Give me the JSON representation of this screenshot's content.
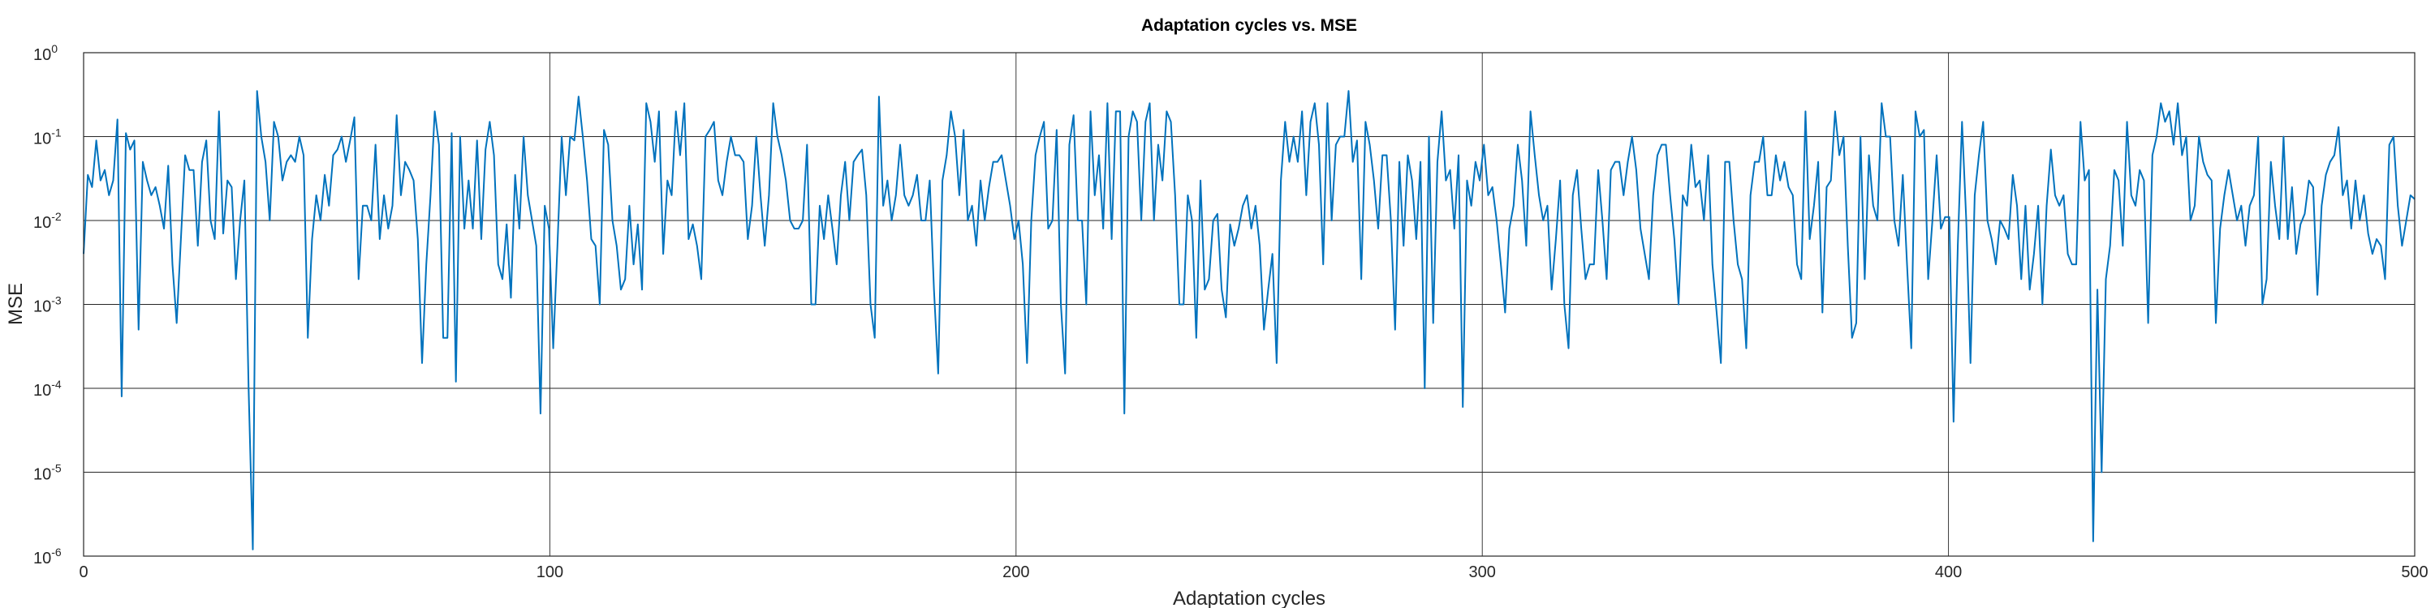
{
  "chart_data": {
    "type": "line",
    "title": "Adaptation cycles vs. MSE",
    "xlabel": "Adaptation cycles",
    "ylabel": "MSE",
    "xlim": [
      0,
      500
    ],
    "ylim": [
      1e-06,
      1
    ],
    "yscale": "log",
    "grid": true,
    "x_ticks": [
      "0",
      "100",
      "200",
      "300",
      "400",
      "500"
    ],
    "y_ticks": [
      {
        "base": "10",
        "exp": "-6"
      },
      {
        "base": "10",
        "exp": "-5"
      },
      {
        "base": "10",
        "exp": "-4"
      },
      {
        "base": "10",
        "exp": "-3"
      },
      {
        "base": "10",
        "exp": "-2"
      },
      {
        "base": "10",
        "exp": "-1"
      },
      {
        "base": "10",
        "exp": "0"
      }
    ],
    "colors": {
      "line": "#0072BD",
      "grid": "#262626",
      "axes": "#262626"
    },
    "series": [
      {
        "values": [
          0.004,
          0.035,
          0.025,
          0.09,
          0.03,
          0.04,
          0.02,
          0.03,
          0.16,
          8e-05,
          0.11,
          0.07,
          0.09,
          0.0005,
          0.05,
          0.03,
          0.02,
          0.025,
          0.015,
          0.008,
          0.045,
          0.003,
          0.0006,
          0.006,
          0.06,
          0.04,
          0.04,
          0.005,
          0.05,
          0.09,
          0.01,
          0.006,
          0.2,
          0.007,
          0.03,
          0.025,
          0.002,
          0.01,
          0.03,
          0.0001,
          1.2e-06,
          0.35,
          0.1,
          0.05,
          0.01,
          0.15,
          0.1,
          0.03,
          0.05,
          0.06,
          0.05,
          0.1,
          0.06,
          0.0004,
          0.006,
          0.02,
          0.01,
          0.035,
          0.015,
          0.06,
          0.07,
          0.1,
          0.05,
          0.09,
          0.17,
          0.002,
          0.015,
          0.015,
          0.01,
          0.08,
          0.006,
          0.02,
          0.008,
          0.015,
          0.18,
          0.02,
          0.05,
          0.04,
          0.03,
          0.006,
          0.0002,
          0.003,
          0.02,
          0.2,
          0.08,
          0.0004,
          0.0004,
          0.11,
          0.00012,
          0.1,
          0.008,
          0.03,
          0.008,
          0.09,
          0.006,
          0.07,
          0.15,
          0.06,
          0.003,
          0.002,
          0.009,
          0.0012,
          0.035,
          0.008,
          0.1,
          0.02,
          0.01,
          0.005,
          5e-05,
          0.015,
          0.008,
          0.0003,
          0.005,
          0.1,
          0.02,
          0.1,
          0.09,
          0.3,
          0.1,
          0.03,
          0.006,
          0.005,
          0.001,
          0.12,
          0.08,
          0.01,
          0.005,
          0.0015,
          0.002,
          0.015,
          0.003,
          0.009,
          0.0015,
          0.25,
          0.15,
          0.05,
          0.2,
          0.004,
          0.03,
          0.02,
          0.2,
          0.06,
          0.25,
          0.006,
          0.009,
          0.005,
          0.002,
          0.1,
          0.12,
          0.15,
          0.03,
          0.02,
          0.05,
          0.1,
          0.06,
          0.06,
          0.05,
          0.006,
          0.015,
          0.1,
          0.02,
          0.005,
          0.02,
          0.25,
          0.1,
          0.06,
          0.03,
          0.01,
          0.008,
          0.008,
          0.01,
          0.08,
          0.001,
          0.001,
          0.015,
          0.006,
          0.02,
          0.008,
          0.003,
          0.02,
          0.05,
          0.01,
          0.05,
          0.06,
          0.07,
          0.02,
          0.001,
          0.0004,
          0.3,
          0.015,
          0.03,
          0.01,
          0.02,
          0.08,
          0.02,
          0.015,
          0.02,
          0.035,
          0.01,
          0.01,
          0.03,
          0.0015,
          0.00015,
          0.03,
          0.06,
          0.2,
          0.1,
          0.02,
          0.12,
          0.01,
          0.015,
          0.005,
          0.03,
          0.01,
          0.025,
          0.05,
          0.05,
          0.06,
          0.03,
          0.015,
          0.006,
          0.01,
          0.003,
          0.0002,
          0.01,
          0.06,
          0.1,
          0.15,
          0.008,
          0.01,
          0.12,
          0.001,
          0.00015,
          0.08,
          0.18,
          0.01,
          0.01,
          0.001,
          0.2,
          0.02,
          0.06,
          0.008,
          0.25,
          0.006,
          0.2,
          0.2,
          5e-05,
          0.1,
          0.2,
          0.15,
          0.01,
          0.15,
          0.25,
          0.01,
          0.08,
          0.03,
          0.2,
          0.15,
          0.02,
          0.001,
          0.001,
          0.02,
          0.01,
          0.0004,
          0.03,
          0.0015,
          0.002,
          0.01,
          0.012,
          0.0015,
          0.0007,
          0.009,
          0.005,
          0.008,
          0.015,
          0.02,
          0.008,
          0.015,
          0.005,
          0.0005,
          0.0015,
          0.004,
          0.0002,
          0.03,
          0.15,
          0.05,
          0.1,
          0.05,
          0.2,
          0.02,
          0.15,
          0.25,
          0.08,
          0.003,
          0.25,
          0.01,
          0.08,
          0.1,
          0.1,
          0.35,
          0.05,
          0.09,
          0.002,
          0.15,
          0.08,
          0.03,
          0.008,
          0.06,
          0.06,
          0.01,
          0.0005,
          0.05,
          0.005,
          0.06,
          0.03,
          0.006,
          0.05,
          0.0001,
          0.1,
          0.0006,
          0.05,
          0.2,
          0.03,
          0.04,
          0.008,
          0.06,
          6e-05,
          0.03,
          0.015,
          0.05,
          0.03,
          0.08,
          0.02,
          0.025,
          0.01,
          0.003,
          0.0008,
          0.008,
          0.015,
          0.08,
          0.03,
          0.005,
          0.2,
          0.06,
          0.02,
          0.01,
          0.015,
          0.0015,
          0.006,
          0.03,
          0.001,
          0.0003,
          0.02,
          0.04,
          0.008,
          0.002,
          0.003,
          0.003,
          0.04,
          0.01,
          0.002,
          0.04,
          0.05,
          0.05,
          0.02,
          0.05,
          0.1,
          0.04,
          0.008,
          0.004,
          0.002,
          0.02,
          0.06,
          0.08,
          0.08,
          0.02,
          0.006,
          0.001,
          0.02,
          0.015,
          0.08,
          0.025,
          0.03,
          0.01,
          0.06,
          0.003,
          0.0008,
          0.0002,
          0.05,
          0.05,
          0.01,
          0.003,
          0.002,
          0.0003,
          0.02,
          0.05,
          0.05,
          0.1,
          0.02,
          0.02,
          0.06,
          0.03,
          0.05,
          0.025,
          0.02,
          0.003,
          0.002,
          0.2,
          0.006,
          0.015,
          0.05,
          0.0008,
          0.025,
          0.03,
          0.2,
          0.06,
          0.1,
          0.005,
          0.0004,
          0.0006,
          0.1,
          0.002,
          0.06,
          0.015,
          0.01,
          0.25,
          0.1,
          0.1,
          0.01,
          0.005,
          0.035,
          0.003,
          0.0003,
          0.2,
          0.1,
          0.12,
          0.002,
          0.01,
          0.06,
          0.008,
          0.011,
          0.011,
          4e-05,
          0.005,
          0.15,
          0.01,
          0.0002,
          0.02,
          0.06,
          0.15,
          0.01,
          0.006,
          0.003,
          0.01,
          0.008,
          0.006,
          0.035,
          0.015,
          0.002,
          0.015,
          0.0015,
          0.004,
          0.015,
          0.001,
          0.015,
          0.07,
          0.02,
          0.015,
          0.02,
          0.004,
          0.003,
          0.003,
          0.15,
          0.03,
          0.04,
          1.5e-06,
          0.0015,
          1e-05,
          0.002,
          0.005,
          0.04,
          0.03,
          0.005,
          0.15,
          0.02,
          0.015,
          0.04,
          0.03,
          0.0006,
          0.06,
          0.1,
          0.25,
          0.15,
          0.2,
          0.08,
          0.25,
          0.06,
          0.1,
          0.01,
          0.015,
          0.1,
          0.05,
          0.035,
          0.03,
          0.0006,
          0.008,
          0.02,
          0.04,
          0.02,
          0.01,
          0.015,
          0.005,
          0.015,
          0.02,
          0.1,
          0.001,
          0.002,
          0.05,
          0.015,
          0.006,
          0.1,
          0.006,
          0.025,
          0.004,
          0.009,
          0.012,
          0.03,
          0.025,
          0.0013,
          0.015,
          0.035,
          0.05,
          0.06,
          0.13,
          0.02,
          0.03,
          0.008,
          0.03,
          0.01,
          0.02,
          0.007,
          0.004,
          0.006,
          0.005,
          0.002,
          0.08,
          0.1,
          0.015,
          0.005,
          0.01,
          0.02,
          0.018
        ]
      }
    ]
  }
}
